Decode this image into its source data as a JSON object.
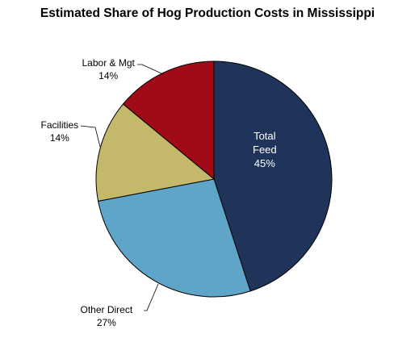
{
  "chart_data": {
    "type": "pie",
    "title": "Estimated Share of Hog Production Costs in Mississippi",
    "slices": [
      {
        "label": "Total Feed",
        "value": 45,
        "display": "45%",
        "color": "#1f335b",
        "label_lines": [
          "Total",
          "Feed"
        ]
      },
      {
        "label": "Other Direct",
        "value": 27,
        "display": "27%",
        "color": "#5ea5c8",
        "label_lines": [
          "Other Direct"
        ]
      },
      {
        "label": "Facilities",
        "value": 14,
        "display": "14%",
        "color": "#c4b96a",
        "label_lines": [
          "Facilities"
        ]
      },
      {
        "label": "Labor & Mgt",
        "value": 14,
        "display": "14%",
        "color": "#a10b17",
        "label_lines": [
          "Labor & Mgt"
        ]
      }
    ],
    "start_angle_deg": 0,
    "direction": "clockwise",
    "legend": "none"
  }
}
